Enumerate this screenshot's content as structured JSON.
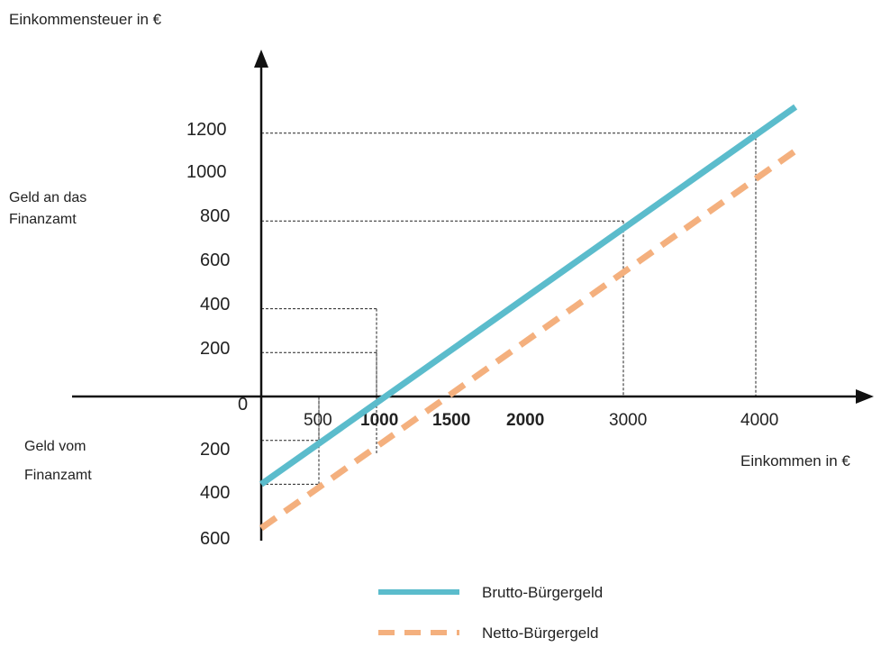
{
  "chart_data": {
    "type": "line",
    "ylabel": "Einkommensteuer in €",
    "xlabel": "Einkommen in €",
    "y_ticks_positive": [
      "200",
      "400",
      "600",
      "800",
      "1000",
      "1200"
    ],
    "y_ticks_negative": [
      "200",
      "400",
      "600"
    ],
    "zero_label": "0",
    "x_ticks": [
      {
        "label": "500",
        "value": 500,
        "bold": false
      },
      {
        "label": "1000",
        "value": 1000,
        "bold": true
      },
      {
        "label": "1500",
        "value": 1500,
        "bold": true
      },
      {
        "label": "2000",
        "value": 2000,
        "bold": true
      },
      {
        "label": "3000",
        "value": 3000,
        "bold": false
      },
      {
        "label": "4000",
        "value": 4000,
        "bold": false
      }
    ],
    "region_labels": {
      "positive": [
        "Geld an das",
        "Finanzamt"
      ],
      "negative": [
        "Geld vom",
        "Finanzamt"
      ]
    },
    "series": [
      {
        "name": "Brutto-Bürgergeld",
        "color": "#5bbccc",
        "style": "solid",
        "points": [
          [
            0,
            -400
          ],
          [
            4000,
            1200
          ]
        ]
      },
      {
        "name": "Netto-Bürgergeld",
        "color": "#f4b07e",
        "style": "dashed",
        "points": [
          [
            0,
            -600
          ],
          [
            4000,
            1000
          ]
        ]
      }
    ],
    "guides": [
      {
        "x": 500,
        "y": -200
      },
      {
        "x": 500,
        "y": -400
      },
      {
        "x": 1000,
        "y": 200
      },
      {
        "x": 1000,
        "y": 400
      },
      {
        "x": 3000,
        "y": 800
      },
      {
        "x": 4000,
        "y": 1200
      }
    ],
    "legend_position": "bottom"
  }
}
